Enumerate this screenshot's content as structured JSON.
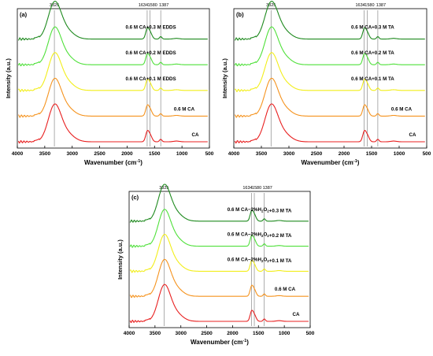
{
  "chart_data": [
    {
      "type": "line",
      "panel_label": "(a)",
      "xlabel": "Wavenumber (cm",
      "xlabel_sup": "-1",
      "xlabel_end": ")",
      "ylabel": "Intensity (a.u.)",
      "xlim": [
        4000,
        500
      ],
      "x_ticks": [
        4000,
        3500,
        3000,
        2500,
        2000,
        1500,
        1000,
        500
      ],
      "peak_lines": [
        {
          "position": 3325,
          "label": "3325"
        },
        {
          "position": 1634,
          "label": "1634"
        },
        {
          "position": 1580,
          "label": "1580"
        },
        {
          "position": 1387,
          "label": "1387"
        }
      ],
      "series": [
        {
          "name": "CA",
          "color": "#e82020"
        },
        {
          "name": "0.6 M CA",
          "color": "#f5931e"
        },
        {
          "name": "0.6 M CA+0.1 M EDDS",
          "color": "#f2ee1a"
        },
        {
          "name": "0.6 M CA+0.2 M EDDS",
          "color": "#4fe03a"
        },
        {
          "name": "0.6 M CA+0.3 M EDDS",
          "color": "#1f8a1f"
        }
      ]
    },
    {
      "type": "line",
      "panel_label": "(b)",
      "xlabel": "Wavenumber (cm",
      "xlabel_sup": "-1",
      "xlabel_end": ")",
      "ylabel": "Intensity (a.u.)",
      "xlim": [
        4000,
        500
      ],
      "x_ticks": [
        4000,
        3500,
        3000,
        2500,
        2000,
        1500,
        1000,
        500
      ],
      "peak_lines": [
        {
          "position": 3325,
          "label": "3325"
        },
        {
          "position": 1634,
          "label": "1634"
        },
        {
          "position": 1580,
          "label": "1580"
        },
        {
          "position": 1387,
          "label": "1387"
        }
      ],
      "series": [
        {
          "name": "CA",
          "color": "#e82020"
        },
        {
          "name": "0.6 M CA",
          "color": "#f5931e"
        },
        {
          "name": "0.6 M CA+0.1 M TA",
          "color": "#f2ee1a"
        },
        {
          "name": "0.6 M CA+0.2 M TA",
          "color": "#4fe03a"
        },
        {
          "name": "0.6 M CA+0.3 M TA",
          "color": "#1f8a1f"
        }
      ]
    },
    {
      "type": "line",
      "panel_label": "(c)",
      "xlabel": "Wavenumber (cm",
      "xlabel_sup": "-1",
      "xlabel_end": ")",
      "ylabel": "Intensity (a.u.)",
      "xlim": [
        4000,
        500
      ],
      "x_ticks": [
        4000,
        3500,
        3000,
        2500,
        2000,
        1500,
        1000,
        500
      ],
      "peak_lines": [
        {
          "position": 3325,
          "label": "3325"
        },
        {
          "position": 1634,
          "label": "1634"
        },
        {
          "position": 1580,
          "label": "1580"
        },
        {
          "position": 1387,
          "label": "1387"
        }
      ],
      "series": [
        {
          "name": "CA",
          "color": "#e82020"
        },
        {
          "name": "0.6 M CA",
          "color": "#f5931e"
        },
        {
          "name": "0.6 M CA−2%H2O2+0.1 M TA",
          "color": "#f2ee1a"
        },
        {
          "name": "0.6 M CA−2%H2O2+0.2 M TA",
          "color": "#4fe03a"
        },
        {
          "name": "0.6 M CA−2%H2O2+0.3 M TA",
          "color": "#1f8a1f"
        }
      ]
    }
  ]
}
